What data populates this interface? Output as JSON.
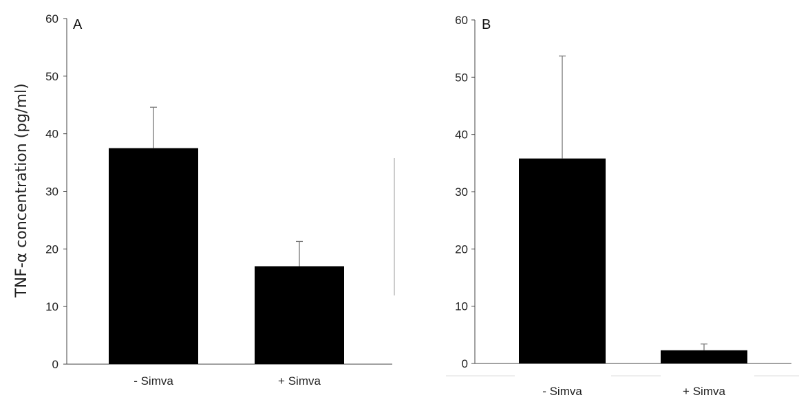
{
  "chart_data": [
    {
      "type": "bar",
      "panel_label": "A",
      "categories": [
        "- Simva",
        "+ Simva"
      ],
      "values": [
        37.5,
        17
      ],
      "error_upper": [
        44.6,
        21.3
      ],
      "ylabel": "TNF-α concentration (pg/ml)",
      "ylim": [
        0,
        60
      ],
      "yticks": [
        0,
        10,
        20,
        30,
        40,
        50,
        60
      ],
      "bar_color": "#000000",
      "grid": false,
      "legend": "none"
    },
    {
      "type": "bar",
      "panel_label": "B",
      "categories": [
        "- Simva",
        "+ Simva"
      ],
      "values": [
        35.8,
        2.3
      ],
      "error_upper": [
        53.7,
        3.4
      ],
      "ylabel": "",
      "ylim": [
        0,
        60
      ],
      "yticks": [
        0,
        10,
        20,
        30,
        40,
        50,
        60
      ],
      "bar_color": "#000000",
      "grid": false,
      "legend": "none"
    }
  ]
}
